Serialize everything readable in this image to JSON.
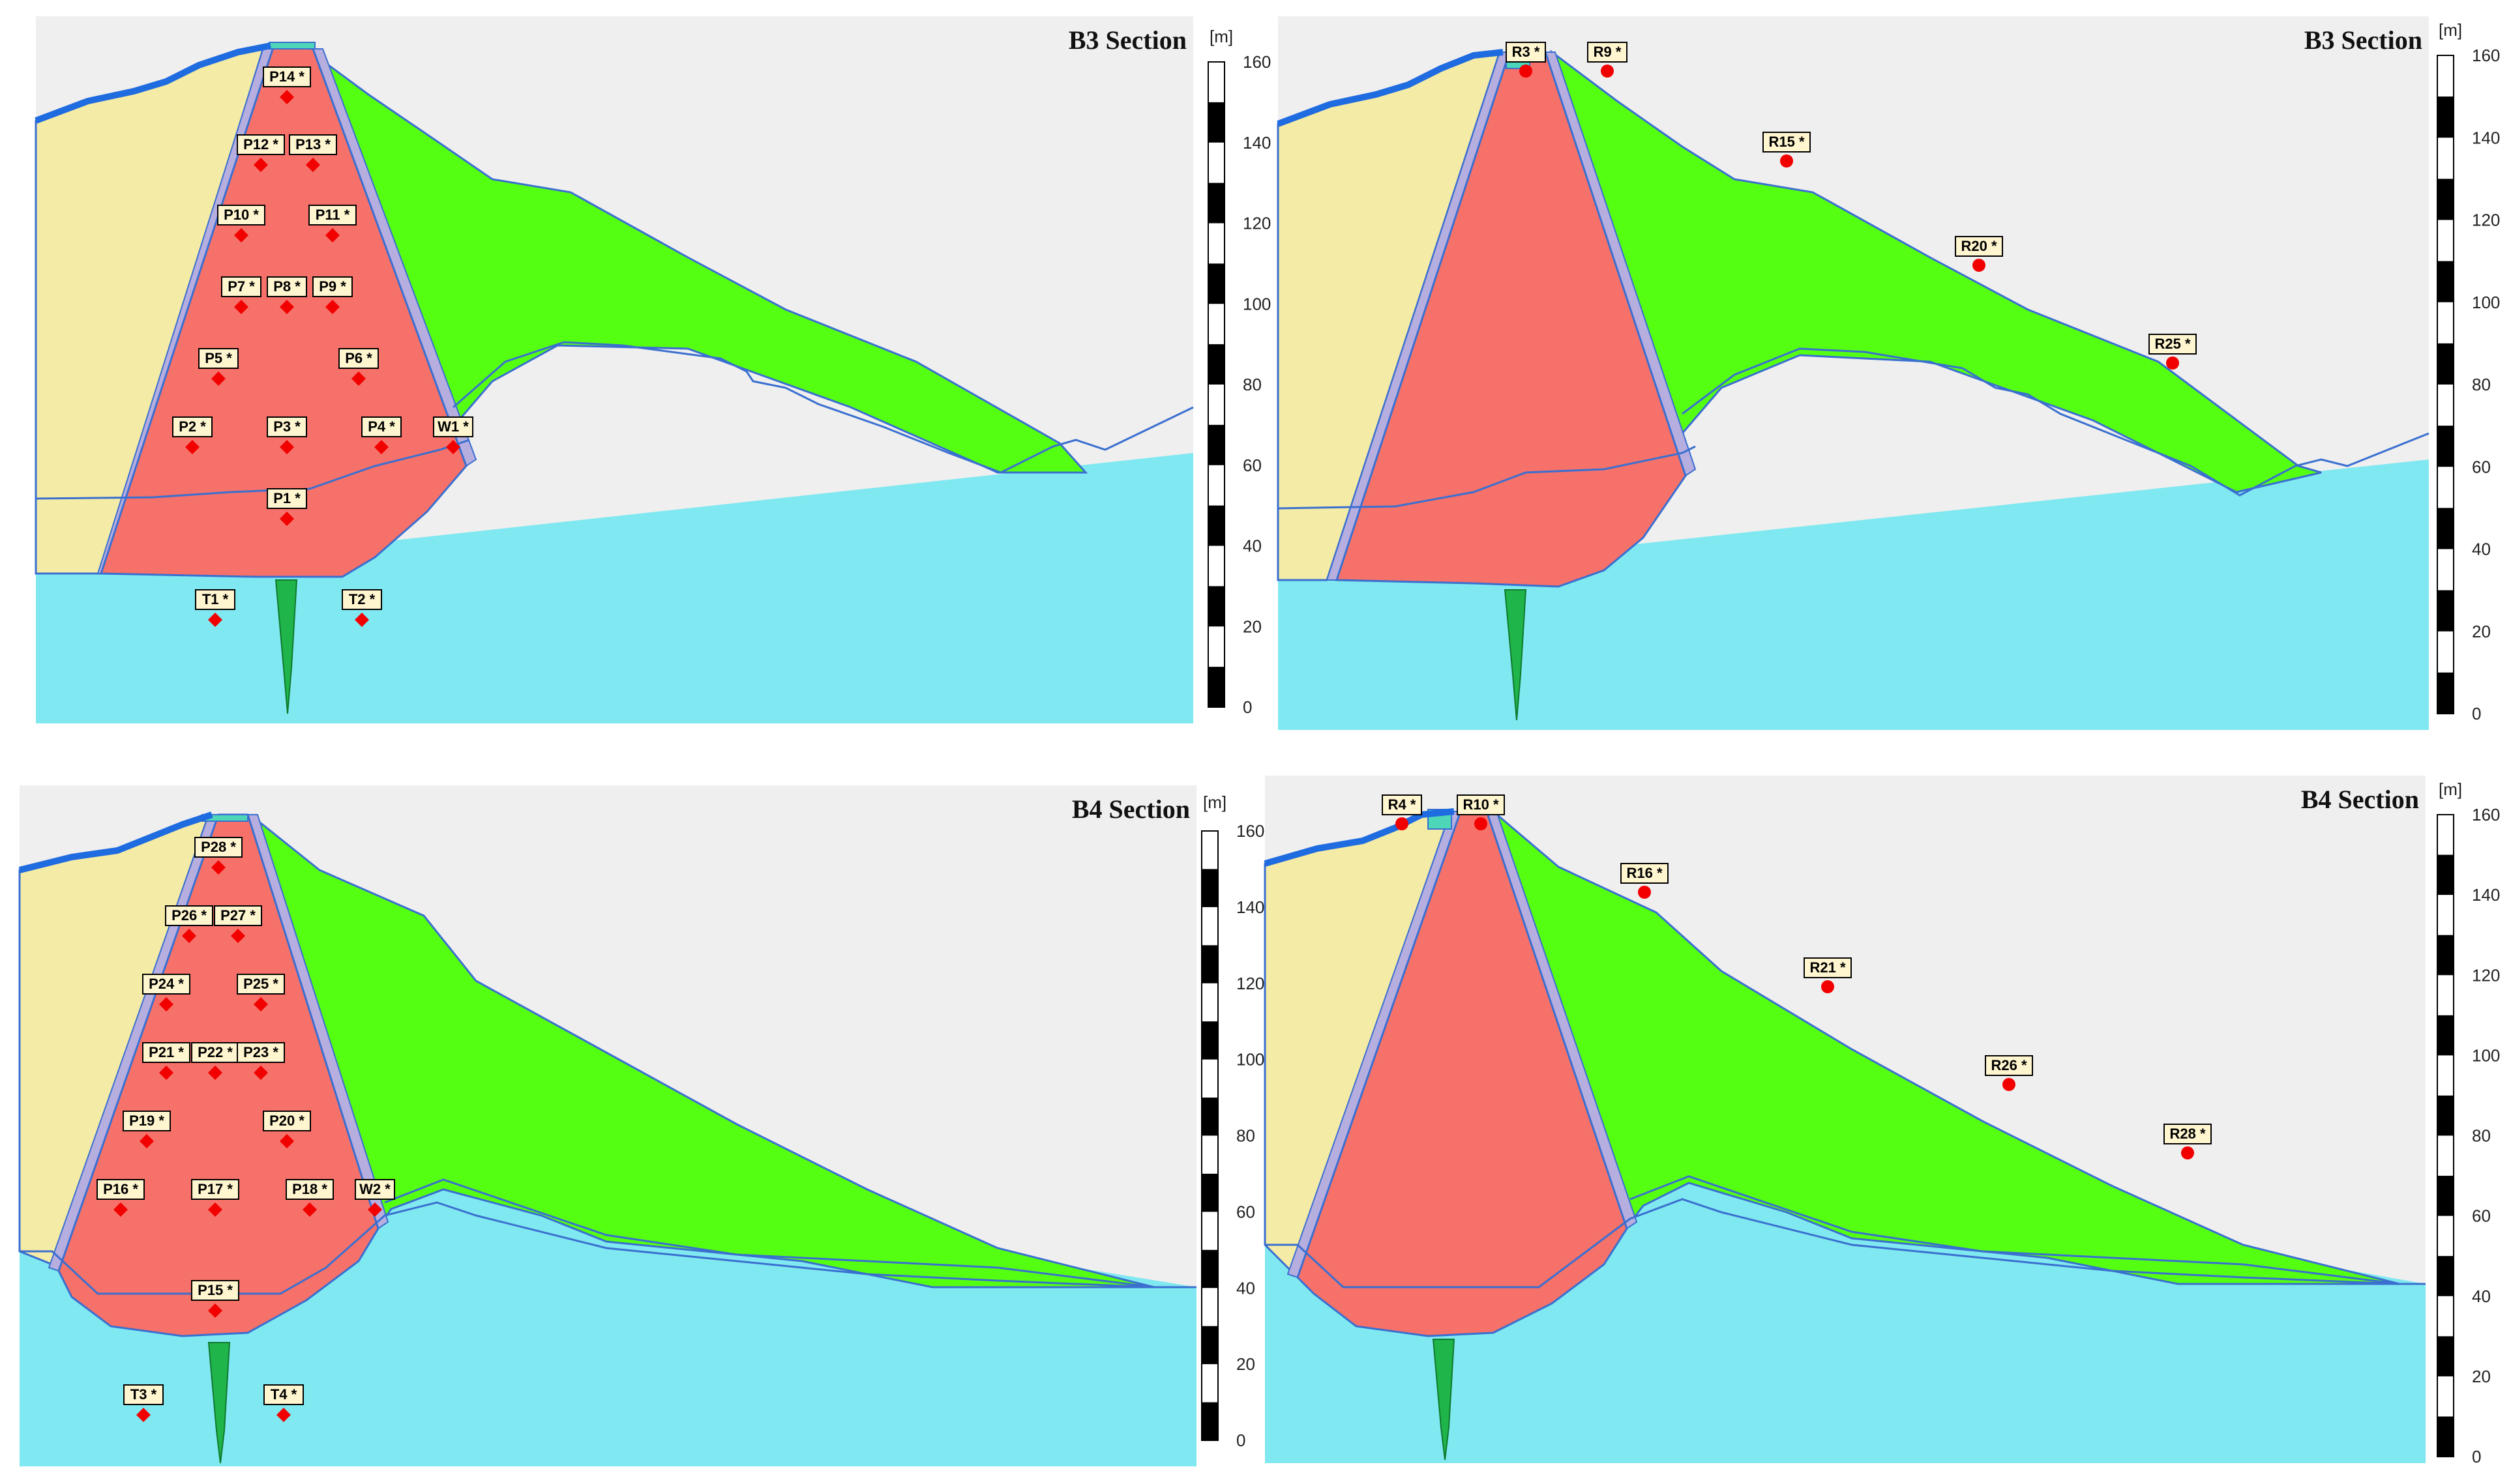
{
  "panels": [
    {
      "id": "b3-monitoring",
      "title": "B3 Section",
      "scale": {
        "unit": "[m]",
        "ticks": [
          "160",
          "140",
          "120",
          "100",
          "80",
          "60",
          "40",
          "20",
          "0"
        ]
      },
      "points": [
        {
          "label": "P14 *",
          "marker": "diamond"
        },
        {
          "label": "P12 *",
          "marker": "diamond"
        },
        {
          "label": "P13 *",
          "marker": "diamond"
        },
        {
          "label": "P10 *",
          "marker": "diamond"
        },
        {
          "label": "P11 *",
          "marker": "diamond"
        },
        {
          "label": "P7 *",
          "marker": "diamond"
        },
        {
          "label": "P8 *",
          "marker": "diamond"
        },
        {
          "label": "P9 *",
          "marker": "diamond"
        },
        {
          "label": "P5 *",
          "marker": "diamond"
        },
        {
          "label": "P6 *",
          "marker": "diamond"
        },
        {
          "label": "P2 *",
          "marker": "diamond"
        },
        {
          "label": "P3 *",
          "marker": "diamond"
        },
        {
          "label": "P4 *",
          "marker": "diamond"
        },
        {
          "label": "W1 *",
          "marker": "diamond"
        },
        {
          "label": "P1 *",
          "marker": "diamond"
        },
        {
          "label": "T1 *",
          "marker": "diamond"
        },
        {
          "label": "T2 *",
          "marker": "diamond"
        }
      ]
    },
    {
      "id": "b3-settlement",
      "title": "B3 Section",
      "scale": {
        "unit": "[m]",
        "ticks": [
          "160",
          "140",
          "120",
          "100",
          "80",
          "60",
          "40",
          "20",
          "0"
        ]
      },
      "points": [
        {
          "label": "R3 *",
          "marker": "circle"
        },
        {
          "label": "R9 *",
          "marker": "circle"
        },
        {
          "label": "R15 *",
          "marker": "circle"
        },
        {
          "label": "R20 *",
          "marker": "circle"
        },
        {
          "label": "R25 *",
          "marker": "circle"
        }
      ]
    },
    {
      "id": "b4-monitoring",
      "title": "B4 Section",
      "scale": {
        "unit": "[m]",
        "ticks": [
          "160",
          "140",
          "120",
          "100",
          "80",
          "60",
          "40",
          "20",
          "0"
        ]
      },
      "points": [
        {
          "label": "P28 *",
          "marker": "diamond"
        },
        {
          "label": "P26 *",
          "marker": "diamond"
        },
        {
          "label": "P27 *",
          "marker": "diamond"
        },
        {
          "label": "P24 *",
          "marker": "diamond"
        },
        {
          "label": "P25 *",
          "marker": "diamond"
        },
        {
          "label": "P21 *",
          "marker": "diamond"
        },
        {
          "label": "P22 *",
          "marker": "diamond"
        },
        {
          "label": "P23 *",
          "marker": "diamond"
        },
        {
          "label": "P19 *",
          "marker": "diamond"
        },
        {
          "label": "P20 *",
          "marker": "diamond"
        },
        {
          "label": "P16 *",
          "marker": "diamond"
        },
        {
          "label": "P17 *",
          "marker": "diamond"
        },
        {
          "label": "P18 *",
          "marker": "diamond"
        },
        {
          "label": "W2 *",
          "marker": "diamond"
        },
        {
          "label": "P15 *",
          "marker": "diamond"
        },
        {
          "label": "T3 *",
          "marker": "diamond"
        },
        {
          "label": "T4 *",
          "marker": "diamond"
        }
      ]
    },
    {
      "id": "b4-settlement",
      "title": "B4 Section",
      "scale": {
        "unit": "[m]",
        "ticks": [
          "160",
          "140",
          "120",
          "100",
          "80",
          "60",
          "40",
          "20",
          "0"
        ]
      },
      "points": [
        {
          "label": "R4 *",
          "marker": "circle"
        },
        {
          "label": "R10 *",
          "marker": "circle"
        },
        {
          "label": "R16 *",
          "marker": "circle"
        },
        {
          "label": "R21 *",
          "marker": "circle"
        },
        {
          "label": "R26 *",
          "marker": "circle"
        },
        {
          "label": "R28 *",
          "marker": "circle"
        }
      ]
    }
  ],
  "colors": {
    "foundation": "#80E8F0",
    "core": "#F57169",
    "downstream_shell": "#55FF11",
    "upstream_shell": "#F4EBA6",
    "filter": "#B7AEE0",
    "outline": "#3A6FD0",
    "cutoff_wall": "#1FB54A",
    "marker": "#F20000",
    "label_box": "#FFF5CF",
    "sky": "#EFEFEF"
  }
}
